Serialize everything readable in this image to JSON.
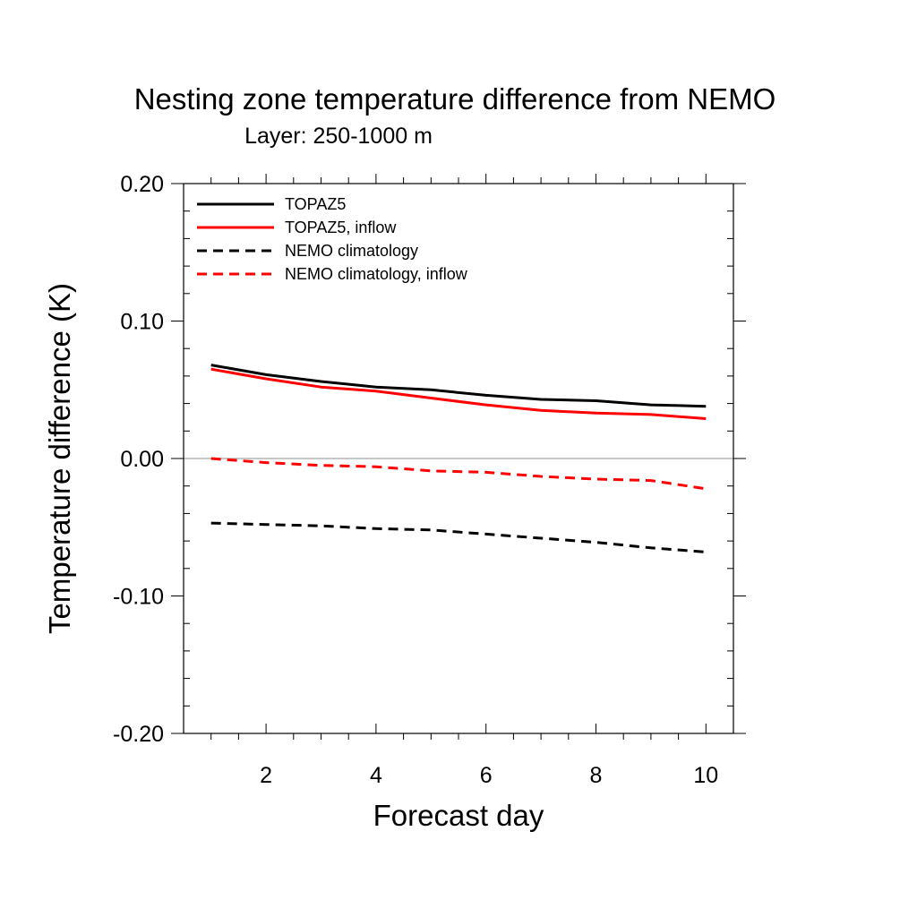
{
  "chart_data": {
    "type": "line",
    "title": "Nesting zone temperature difference from NEMO",
    "subtitle": "Layer: 250-1000 m",
    "xlabel": "Forecast day",
    "ylabel": "Temperature difference (K)",
    "xlim": [
      0.5,
      10.5
    ],
    "ylim": [
      -0.2,
      0.2
    ],
    "xticks": [
      2,
      4,
      6,
      8,
      10
    ],
    "xtick_labels": [
      "2",
      "4",
      "6",
      "8",
      "10"
    ],
    "yticks": [
      -0.2,
      -0.1,
      0.0,
      0.1,
      0.2
    ],
    "ytick_labels": [
      "-0.20",
      "-0.10",
      "0.00",
      "0.10",
      "0.20"
    ],
    "zero_line": true,
    "grid": false,
    "legend_position": "top-left",
    "x": [
      1,
      2,
      3,
      4,
      5,
      6,
      7,
      8,
      9,
      10
    ],
    "series": [
      {
        "name": "TOPAZ5",
        "color": "#000000",
        "dash": "solid",
        "values": [
          0.068,
          0.061,
          0.056,
          0.052,
          0.05,
          0.046,
          0.043,
          0.042,
          0.039,
          0.038
        ]
      },
      {
        "name": "TOPAZ5, inflow",
        "color": "#ff0000",
        "dash": "solid",
        "values": [
          0.065,
          0.058,
          0.052,
          0.049,
          0.044,
          0.039,
          0.035,
          0.033,
          0.032,
          0.029
        ]
      },
      {
        "name": "NEMO climatology",
        "color": "#000000",
        "dash": "dashed",
        "values": [
          -0.047,
          -0.048,
          -0.049,
          -0.051,
          -0.052,
          -0.055,
          -0.058,
          -0.061,
          -0.065,
          -0.068
        ]
      },
      {
        "name": "NEMO climatology, inflow",
        "color": "#ff0000",
        "dash": "dashed",
        "values": [
          0.0,
          -0.003,
          -0.005,
          -0.006,
          -0.009,
          -0.01,
          -0.013,
          -0.015,
          -0.016,
          -0.022
        ]
      }
    ]
  }
}
